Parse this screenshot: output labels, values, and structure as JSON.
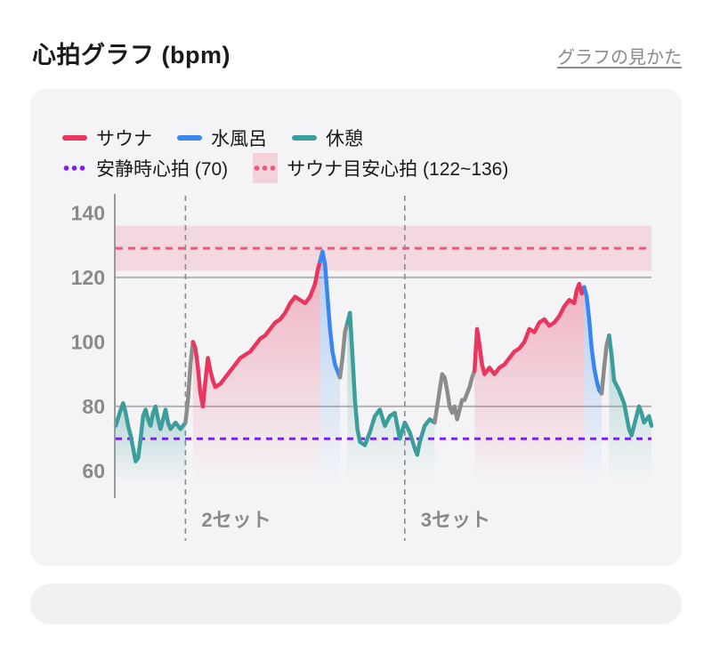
{
  "header": {
    "title": "心拍グラフ (bpm)",
    "help_link": "グラフの見かた"
  },
  "legend": {
    "sauna": "サウナ",
    "cold_bath": "水風呂",
    "rest": "休憩",
    "resting_hr": "安静時心拍 (70)",
    "sauna_target": "サウナ目安心拍 (122~136)"
  },
  "colors": {
    "sauna": "#e8365e",
    "cold_bath": "#3a86f0",
    "rest": "#3c9e9a",
    "transition": "#8c8c8c",
    "resting_line": "#7a20f0",
    "target_line": "#e85a80",
    "target_band": "#f3d2da"
  },
  "chart_data": {
    "type": "line",
    "ylim": [
      56,
      142
    ],
    "y_ticks": [
      60,
      80,
      100,
      120,
      140
    ],
    "grid_lines": [
      80,
      120
    ],
    "resting_hr": 70,
    "target_band": [
      122,
      136
    ],
    "target_line": 129,
    "set_markers": [
      {
        "x": 0.14,
        "label": "2セット"
      },
      {
        "x": 0.58,
        "label": "3セット"
      }
    ],
    "segments": [
      {
        "phase": "rest",
        "points": [
          [
            0.0,
            74
          ],
          [
            0.01,
            79
          ],
          [
            0.015,
            81
          ],
          [
            0.02,
            78
          ],
          [
            0.025,
            74
          ],
          [
            0.03,
            71
          ],
          [
            0.035,
            67
          ],
          [
            0.04,
            63
          ],
          [
            0.045,
            64
          ],
          [
            0.05,
            70
          ],
          [
            0.055,
            77
          ],
          [
            0.06,
            79
          ],
          [
            0.065,
            76
          ],
          [
            0.07,
            74
          ],
          [
            0.075,
            78
          ],
          [
            0.08,
            80
          ],
          [
            0.085,
            76
          ],
          [
            0.09,
            73
          ],
          [
            0.095,
            76
          ],
          [
            0.1,
            79
          ],
          [
            0.105,
            75
          ],
          [
            0.11,
            73
          ],
          [
            0.12,
            75
          ],
          [
            0.13,
            73
          ],
          [
            0.14,
            75
          ]
        ]
      },
      {
        "phase": "transition",
        "points": [
          [
            0.14,
            75
          ],
          [
            0.145,
            82
          ],
          [
            0.15,
            93
          ],
          [
            0.155,
            100
          ]
        ]
      },
      {
        "phase": "sauna",
        "points": [
          [
            0.155,
            100
          ],
          [
            0.16,
            98
          ],
          [
            0.165,
            92
          ],
          [
            0.17,
            84
          ],
          [
            0.175,
            80
          ],
          [
            0.18,
            88
          ],
          [
            0.185,
            95
          ],
          [
            0.19,
            91
          ],
          [
            0.195,
            88
          ],
          [
            0.2,
            86
          ],
          [
            0.21,
            87
          ],
          [
            0.22,
            89
          ],
          [
            0.23,
            91
          ],
          [
            0.24,
            93
          ],
          [
            0.25,
            95
          ],
          [
            0.26,
            96
          ],
          [
            0.27,
            97
          ],
          [
            0.28,
            99
          ],
          [
            0.29,
            101
          ],
          [
            0.3,
            102
          ],
          [
            0.31,
            104
          ],
          [
            0.32,
            106
          ],
          [
            0.33,
            107
          ],
          [
            0.34,
            109
          ],
          [
            0.35,
            112
          ],
          [
            0.36,
            114
          ],
          [
            0.37,
            113
          ],
          [
            0.38,
            112
          ],
          [
            0.39,
            114
          ],
          [
            0.4,
            118
          ],
          [
            0.405,
            122
          ],
          [
            0.41,
            125
          ]
        ]
      },
      {
        "phase": "cold_bath",
        "points": [
          [
            0.41,
            125
          ],
          [
            0.415,
            128
          ],
          [
            0.42,
            124
          ],
          [
            0.425,
            114
          ],
          [
            0.43,
            104
          ],
          [
            0.435,
            97
          ],
          [
            0.44,
            93
          ],
          [
            0.445,
            91
          ],
          [
            0.45,
            89
          ]
        ]
      },
      {
        "phase": "transition",
        "points": [
          [
            0.45,
            89
          ],
          [
            0.455,
            95
          ],
          [
            0.46,
            103
          ],
          [
            0.465,
            106
          ]
        ]
      },
      {
        "phase": "rest",
        "points": [
          [
            0.465,
            106
          ],
          [
            0.47,
            109
          ],
          [
            0.475,
            96
          ],
          [
            0.48,
            82
          ],
          [
            0.485,
            73
          ],
          [
            0.49,
            69
          ],
          [
            0.5,
            68
          ],
          [
            0.51,
            72
          ],
          [
            0.52,
            77
          ],
          [
            0.53,
            79
          ],
          [
            0.54,
            74
          ],
          [
            0.55,
            77
          ],
          [
            0.56,
            78
          ],
          [
            0.57,
            70
          ],
          [
            0.58,
            75
          ],
          [
            0.59,
            72
          ],
          [
            0.6,
            67
          ],
          [
            0.605,
            65
          ],
          [
            0.61,
            69
          ],
          [
            0.62,
            74
          ],
          [
            0.63,
            76
          ],
          [
            0.64,
            75
          ]
        ]
      },
      {
        "phase": "transition",
        "points": [
          [
            0.64,
            75
          ],
          [
            0.645,
            80
          ],
          [
            0.65,
            85
          ],
          [
            0.655,
            90
          ],
          [
            0.66,
            89
          ],
          [
            0.665,
            85
          ],
          [
            0.67,
            80
          ],
          [
            0.675,
            78
          ],
          [
            0.68,
            80
          ],
          [
            0.685,
            76
          ],
          [
            0.69,
            79
          ],
          [
            0.695,
            82
          ],
          [
            0.7,
            82
          ],
          [
            0.705,
            84
          ],
          [
            0.71,
            86
          ],
          [
            0.715,
            89
          ],
          [
            0.72,
            91
          ]
        ]
      },
      {
        "phase": "sauna",
        "points": [
          [
            0.72,
            91
          ],
          [
            0.725,
            104
          ],
          [
            0.73,
            99
          ],
          [
            0.735,
            93
          ],
          [
            0.74,
            90
          ],
          [
            0.75,
            92
          ],
          [
            0.76,
            90
          ],
          [
            0.77,
            92
          ],
          [
            0.78,
            93
          ],
          [
            0.79,
            95
          ],
          [
            0.8,
            97
          ],
          [
            0.81,
            98
          ],
          [
            0.82,
            100
          ],
          [
            0.83,
            104
          ],
          [
            0.84,
            103
          ],
          [
            0.85,
            106
          ],
          [
            0.86,
            107
          ],
          [
            0.87,
            105
          ],
          [
            0.88,
            106
          ],
          [
            0.89,
            108
          ],
          [
            0.9,
            111
          ],
          [
            0.91,
            113
          ],
          [
            0.92,
            112
          ],
          [
            0.925,
            116
          ],
          [
            0.93,
            118
          ],
          [
            0.935,
            115
          ],
          [
            0.94,
            117
          ]
        ]
      },
      {
        "phase": "cold_bath",
        "points": [
          [
            0.94,
            117
          ],
          [
            0.945,
            114
          ],
          [
            0.95,
            107
          ],
          [
            0.955,
            98
          ],
          [
            0.96,
            92
          ],
          [
            0.965,
            88
          ],
          [
            0.97,
            85
          ],
          [
            0.975,
            84
          ]
        ]
      },
      {
        "phase": "transition",
        "points": [
          [
            0.975,
            84
          ],
          [
            0.98,
            92
          ],
          [
            0.985,
            99
          ],
          [
            0.99,
            102
          ]
        ]
      },
      {
        "phase": "rest",
        "points": [
          [
            0.99,
            102
          ],
          [
            0.995,
            96
          ],
          [
            1.0,
            88
          ],
          [
            1.01,
            85
          ],
          [
            1.02,
            81
          ],
          [
            1.025,
            77
          ],
          [
            1.03,
            73
          ],
          [
            1.035,
            71
          ],
          [
            1.04,
            74
          ],
          [
            1.05,
            80
          ],
          [
            1.055,
            78
          ],
          [
            1.06,
            75
          ],
          [
            1.07,
            77
          ],
          [
            1.075,
            74
          ]
        ]
      }
    ]
  }
}
